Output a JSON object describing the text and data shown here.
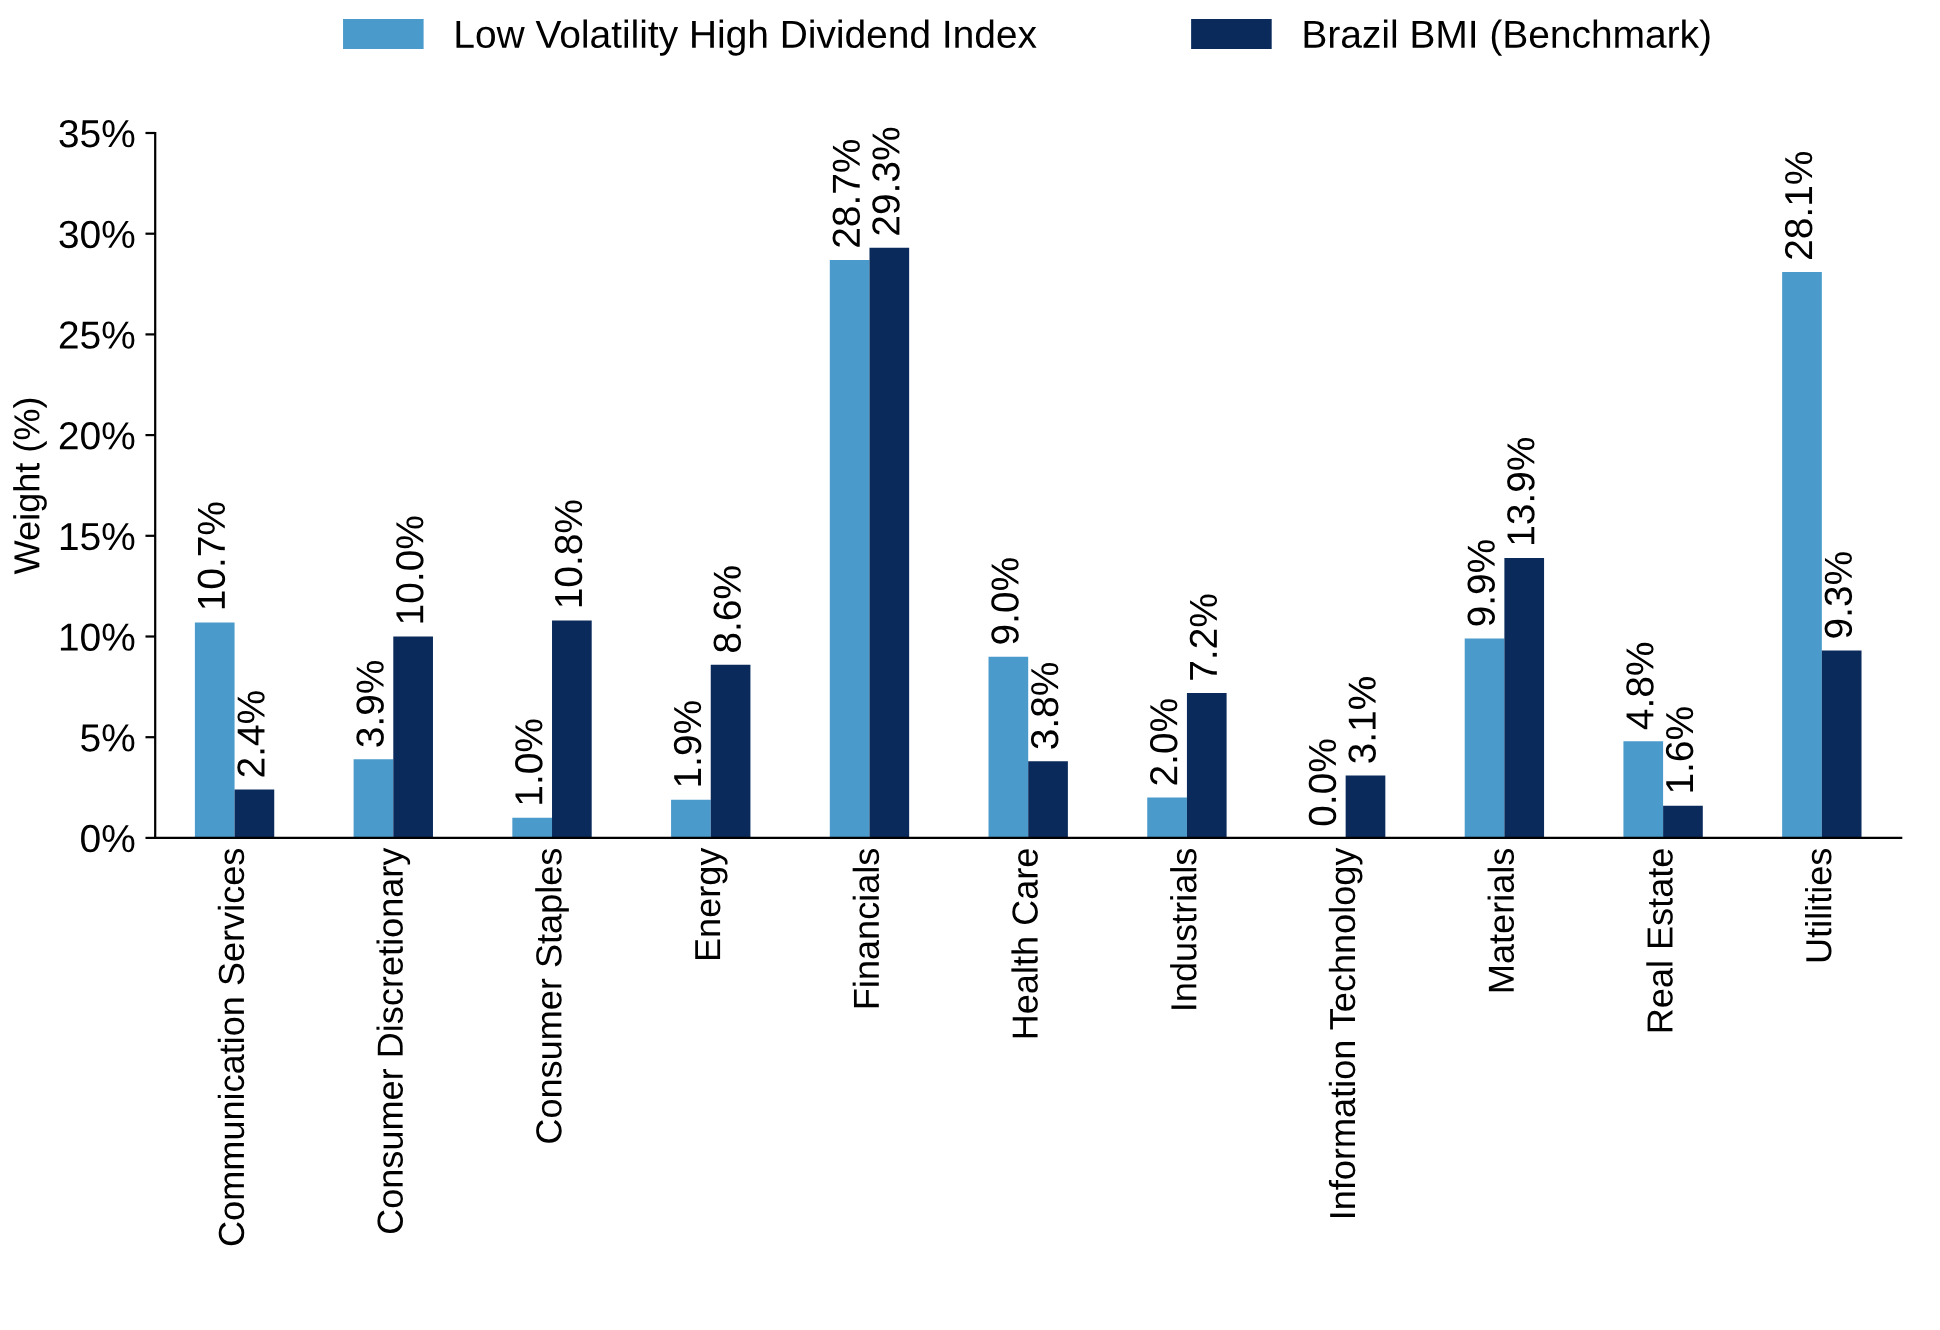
{
  "chart_data": {
    "type": "bar",
    "ylabel": "Weight (%)",
    "categories": [
      "Communication Services",
      "Consumer Discretionary",
      "Consumer Staples",
      "Energy",
      "Financials",
      "Health Care",
      "Industrials",
      "Information Technology",
      "Materials",
      "Real Estate",
      "Utilities"
    ],
    "series": [
      {
        "name": "Low Volatility High Dividend Index",
        "color": "#4a9acb",
        "values": [
          10.7,
          3.9,
          1.0,
          1.9,
          28.7,
          9.0,
          2.0,
          0.0,
          9.9,
          4.8,
          28.1
        ],
        "value_labels": [
          "10.7%",
          "3.9%",
          "1.0%",
          "1.9%",
          "28.7%",
          "9.0%",
          "2.0%",
          "0.0%",
          "9.9%",
          "4.8%",
          "28.1%"
        ]
      },
      {
        "name": "Brazil BMI (Benchmark)",
        "color": "#0a2a5c",
        "values": [
          2.4,
          10.0,
          10.8,
          8.6,
          29.3,
          3.8,
          7.2,
          3.1,
          13.9,
          1.6,
          9.3
        ],
        "value_labels": [
          "2.4%",
          "10.0%",
          "10.8%",
          "8.6%",
          "29.3%",
          "3.8%",
          "7.2%",
          "3.1%",
          "13.9%",
          "1.6%",
          "9.3%"
        ]
      }
    ],
    "ylim": [
      0,
      35
    ],
    "yticks": [
      {
        "value": 0,
        "label": "0%"
      },
      {
        "value": 5,
        "label": "5%"
      },
      {
        "value": 10,
        "label": "10%"
      },
      {
        "value": 15,
        "label": "15%"
      },
      {
        "value": 20,
        "label": "20%"
      },
      {
        "value": 25,
        "label": "25%"
      },
      {
        "value": 30,
        "label": "30%"
      },
      {
        "value": 35,
        "label": "35%"
      }
    ],
    "grid": false,
    "legend": "top"
  }
}
